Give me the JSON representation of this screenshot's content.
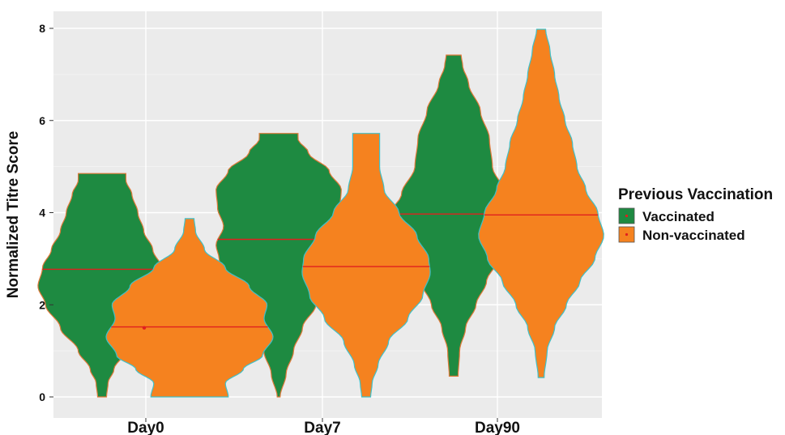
{
  "chart_data": {
    "type": "violin",
    "title": "",
    "xlabel": "",
    "ylabel": "Normalized Titre Score",
    "ylim": [
      -0.4,
      8.3
    ],
    "y_ticks": [
      0,
      2,
      4,
      6,
      8
    ],
    "categories": [
      "Day0",
      "Day7",
      "Day90"
    ],
    "legend": {
      "title": "Previous Vaccination",
      "position": "right",
      "entries": [
        "Vaccinated",
        "Non-vaccinated"
      ]
    },
    "grid": true,
    "colors": {
      "panel": "#ebebeb",
      "grid_major": "#ffffff",
      "grid_minor": "#f5f5f5",
      "Vaccinated": "#1e8a41",
      "Non-vaccinated": "#f5821f",
      "median_line": "#e0201f",
      "violin_outline_Vaccinated": "#e07a3a",
      "violin_outline_Non-vaccinated": "#40c0c8"
    },
    "series": [
      {
        "name": "Vaccinated",
        "violins": [
          {
            "category": "Day0",
            "min": 0.0,
            "max": 4.85,
            "median": 2.77,
            "density": [
              [
                0,
                0.03
              ],
              [
                0.3,
                0.04
              ],
              [
                0.6,
                0.08
              ],
              [
                1.0,
                0.16
              ],
              [
                1.5,
                0.28
              ],
              [
                2.0,
                0.38
              ],
              [
                2.4,
                0.43
              ],
              [
                2.8,
                0.4
              ],
              [
                3.2,
                0.34
              ],
              [
                3.6,
                0.28
              ],
              [
                4.0,
                0.24
              ],
              [
                4.4,
                0.2
              ],
              [
                4.7,
                0.16
              ],
              [
                4.85,
                0.16
              ]
            ]
          },
          {
            "category": "Day7",
            "min": 0.0,
            "max": 5.72,
            "median": 3.42,
            "density": [
              [
                0,
                0.01
              ],
              [
                0.5,
                0.05
              ],
              [
                1.0,
                0.1
              ],
              [
                1.5,
                0.16
              ],
              [
                2.0,
                0.25
              ],
              [
                2.5,
                0.33
              ],
              [
                3.0,
                0.4
              ],
              [
                3.3,
                0.42
              ],
              [
                3.7,
                0.37
              ],
              [
                4.1,
                0.41
              ],
              [
                4.5,
                0.42
              ],
              [
                4.9,
                0.34
              ],
              [
                5.3,
                0.2
              ],
              [
                5.6,
                0.13
              ],
              [
                5.72,
                0.13
              ]
            ]
          },
          {
            "category": "Day90",
            "min": 0.45,
            "max": 7.42,
            "median": 3.97,
            "density": [
              [
                0.45,
                0.03
              ],
              [
                1.0,
                0.04
              ],
              [
                1.5,
                0.08
              ],
              [
                2.0,
                0.15
              ],
              [
                2.5,
                0.22
              ],
              [
                3.0,
                0.3
              ],
              [
                3.5,
                0.38
              ],
              [
                4.0,
                0.42
              ],
              [
                4.4,
                0.35
              ],
              [
                5.0,
                0.26
              ],
              [
                5.6,
                0.24
              ],
              [
                6.2,
                0.18
              ],
              [
                6.8,
                0.1
              ],
              [
                7.2,
                0.06
              ],
              [
                7.42,
                0.05
              ]
            ]
          }
        ]
      },
      {
        "name": "Non-vaccinated",
        "violins": [
          {
            "category": "Day0",
            "min": 0.0,
            "max": 3.87,
            "median": 1.52,
            "density": [
              [
                0,
                0.26
              ],
              [
                0.3,
                0.24
              ],
              [
                0.6,
                0.36
              ],
              [
                0.9,
                0.49
              ],
              [
                1.3,
                0.56
              ],
              [
                1.7,
                0.5
              ],
              [
                2.0,
                0.52
              ],
              [
                2.4,
                0.4
              ],
              [
                2.8,
                0.24
              ],
              [
                3.2,
                0.1
              ],
              [
                3.6,
                0.04
              ],
              [
                3.87,
                0.03
              ]
            ]
          },
          {
            "category": "Day7",
            "min": 0.0,
            "max": 5.72,
            "median": 2.83,
            "density": [
              [
                0,
                0.03
              ],
              [
                0.3,
                0.04
              ],
              [
                0.7,
                0.08
              ],
              [
                1.2,
                0.15
              ],
              [
                1.7,
                0.28
              ],
              [
                2.2,
                0.38
              ],
              [
                2.7,
                0.43
              ],
              [
                3.0,
                0.42
              ],
              [
                3.5,
                0.34
              ],
              [
                4.0,
                0.22
              ],
              [
                4.5,
                0.12
              ],
              [
                5.0,
                0.09
              ],
              [
                5.4,
                0.09
              ],
              [
                5.72,
                0.09
              ]
            ]
          },
          {
            "category": "Day90",
            "min": 0.42,
            "max": 7.98,
            "median": 3.95,
            "density": [
              [
                0.42,
                0.02
              ],
              [
                1.0,
                0.04
              ],
              [
                1.5,
                0.09
              ],
              [
                2.0,
                0.17
              ],
              [
                2.5,
                0.26
              ],
              [
                3.0,
                0.36
              ],
              [
                3.5,
                0.42
              ],
              [
                4.0,
                0.38
              ],
              [
                4.5,
                0.3
              ],
              [
                5.0,
                0.24
              ],
              [
                5.5,
                0.21
              ],
              [
                6.0,
                0.16
              ],
              [
                6.5,
                0.12
              ],
              [
                7.0,
                0.09
              ],
              [
                7.5,
                0.06
              ],
              [
                7.98,
                0.03
              ]
            ]
          }
        ]
      }
    ]
  }
}
